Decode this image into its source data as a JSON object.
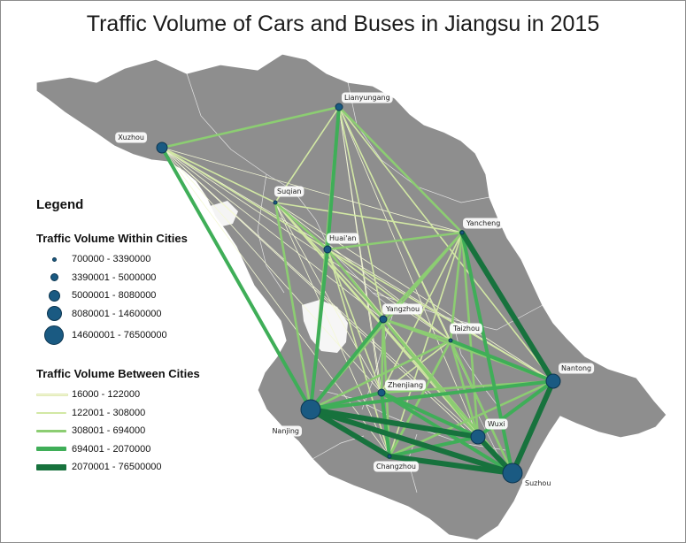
{
  "title": "Traffic Volume of Cars and Buses in Jiangsu in 2015",
  "colors": {
    "land": "#8e8e8e",
    "node": "#1a5a82",
    "label_bg": "#ffffff",
    "flow": [
      "#f4f8d6",
      "#d2e8a4",
      "#8ccd72",
      "#3fae58",
      "#17723d"
    ]
  },
  "legend": {
    "title": "Legend",
    "within": {
      "title": "Traffic Volume Within Cities",
      "classes": [
        "700000 - 3390000",
        "3390001 - 5000000",
        "5000001 - 8080000",
        "8080001 - 14600000",
        "14600001 - 76500000"
      ]
    },
    "between": {
      "title": "Traffic Volume Between Cities",
      "classes": [
        "16000 - 122000",
        "122001 - 308000",
        "308001 - 694000",
        "694001 - 2070000",
        "2070001 - 76500000"
      ]
    }
  },
  "cities": [
    {
      "name": "Xuzhou",
      "within_class": 2
    },
    {
      "name": "Lianyungang",
      "within_class": 1
    },
    {
      "name": "Suqian",
      "within_class": 0
    },
    {
      "name": "Huai'an",
      "within_class": 1
    },
    {
      "name": "Yancheng",
      "within_class": 0
    },
    {
      "name": "Yangzhou",
      "within_class": 1
    },
    {
      "name": "Taizhou",
      "within_class": 0
    },
    {
      "name": "Nantong",
      "within_class": 3
    },
    {
      "name": "Zhenjiang",
      "within_class": 1
    },
    {
      "name": "Nanjing",
      "within_class": 4
    },
    {
      "name": "Wuxi",
      "within_class": 3
    },
    {
      "name": "Changzhou",
      "within_class": 0
    },
    {
      "name": "Suzhou",
      "within_class": 4
    }
  ],
  "flows": [
    [
      "Suzhou",
      "Nanjing",
      4
    ],
    [
      "Suzhou",
      "Wuxi",
      4
    ],
    [
      "Suzhou",
      "Nantong",
      4
    ],
    [
      "Suzhou",
      "Changzhou",
      4
    ],
    [
      "Nanjing",
      "Wuxi",
      4
    ],
    [
      "Nanjing",
      "Changzhou",
      4
    ],
    [
      "Nanjing",
      "Zhenjiang",
      3
    ],
    [
      "Nanjing",
      "Xuzhou",
      3
    ],
    [
      "Nanjing",
      "Huai'an",
      3
    ],
    [
      "Nanjing",
      "Yangzhou",
      3
    ],
    [
      "Nanjing",
      "Nantong",
      3
    ],
    [
      "Nanjing",
      "Suqian",
      2
    ],
    [
      "Nanjing",
      "Yancheng",
      2
    ],
    [
      "Nanjing",
      "Taizhou",
      2
    ],
    [
      "Nanjing",
      "Lianyungang",
      2
    ],
    [
      "Changzhou",
      "Wuxi",
      3
    ],
    [
      "Changzhou",
      "Zhenjiang",
      3
    ],
    [
      "Changzhou",
      "Nantong",
      2
    ],
    [
      "Changzhou",
      "Yangzhou",
      2
    ],
    [
      "Changzhou",
      "Taizhou",
      2
    ],
    [
      "Changzhou",
      "Yancheng",
      1
    ],
    [
      "Changzhou",
      "Huai'an",
      1
    ],
    [
      "Wuxi",
      "Nantong",
      3
    ],
    [
      "Wuxi",
      "Taizhou",
      2
    ],
    [
      "Wuxi",
      "Yangzhou",
      2
    ],
    [
      "Wuxi",
      "Zhenjiang",
      3
    ],
    [
      "Wuxi",
      "Yancheng",
      2
    ],
    [
      "Wuxi",
      "Huai'an",
      1
    ],
    [
      "Wuxi",
      "Suqian",
      1
    ],
    [
      "Suzhou",
      "Yancheng",
      3
    ],
    [
      "Suzhou",
      "Taizhou",
      2
    ],
    [
      "Suzhou",
      "Yangzhou",
      2
    ],
    [
      "Suzhou",
      "Zhenjiang",
      3
    ],
    [
      "Suzhou",
      "Huai'an",
      1
    ],
    [
      "Suzhou",
      "Suqian",
      1
    ],
    [
      "Suzhou",
      "Xuzhou",
      0
    ],
    [
      "Suzhou",
      "Lianyungang",
      1
    ],
    [
      "Nantong",
      "Yancheng",
      4
    ],
    [
      "Nantong",
      "Taizhou",
      3
    ],
    [
      "Nantong",
      "Yangzhou",
      2
    ],
    [
      "Nantong",
      "Zhenjiang",
      2
    ],
    [
      "Nantong",
      "Huai'an",
      1
    ],
    [
      "Nantong",
      "Suqian",
      0
    ],
    [
      "Nantong",
      "Xuzhou",
      0
    ],
    [
      "Yancheng",
      "Huai'an",
      2
    ],
    [
      "Yancheng",
      "Lianyungang",
      2
    ],
    [
      "Yancheng",
      "Taizhou",
      2
    ],
    [
      "Yancheng",
      "Yangzhou",
      2
    ],
    [
      "Yancheng",
      "Suqian",
      1
    ],
    [
      "Yancheng",
      "Xuzhou",
      0
    ],
    [
      "Yancheng",
      "Zhenjiang",
      1
    ],
    [
      "Xuzhou",
      "Lianyungang",
      2
    ],
    [
      "Xuzhou",
      "Suqian",
      1
    ],
    [
      "Xuzhou",
      "Huai'an",
      1
    ],
    [
      "Xuzhou",
      "Yangzhou",
      0
    ],
    [
      "Xuzhou",
      "Zhenjiang",
      0
    ],
    [
      "Xuzhou",
      "Changzhou",
      0
    ],
    [
      "Xuzhou",
      "Wuxi",
      0
    ],
    [
      "Xuzhou",
      "Taizhou",
      0
    ],
    [
      "Lianyungang",
      "Huai'an",
      3
    ],
    [
      "Lianyungang",
      "Suqian",
      1
    ],
    [
      "Lianyungang",
      "Yangzhou",
      1
    ],
    [
      "Lianyungang",
      "Zhenjiang",
      0
    ],
    [
      "Lianyungang",
      "Taizhou",
      0
    ],
    [
      "Lianyungang",
      "Wuxi",
      0
    ],
    [
      "Lianyungang",
      "Changzhou",
      0
    ],
    [
      "Lianyungang",
      "Nantong",
      1
    ],
    [
      "Suqian",
      "Huai'an",
      2
    ],
    [
      "Suqian",
      "Yangzhou",
      1
    ],
    [
      "Suqian",
      "Zhenjiang",
      0
    ],
    [
      "Suqian",
      "Taizhou",
      0
    ],
    [
      "Suqian",
      "Changzhou",
      0
    ],
    [
      "Huai'an",
      "Yangzhou",
      2
    ],
    [
      "Huai'an",
      "Zhenjiang",
      1
    ],
    [
      "Huai'an",
      "Taizhou",
      1
    ],
    [
      "Yangzhou",
      "Zhenjiang",
      2
    ],
    [
      "Yangzhou",
      "Taizhou",
      2
    ],
    [
      "Zhenjiang",
      "Taizhou",
      1
    ],
    [
      "Taizhou",
      "Changzhou",
      2
    ]
  ]
}
